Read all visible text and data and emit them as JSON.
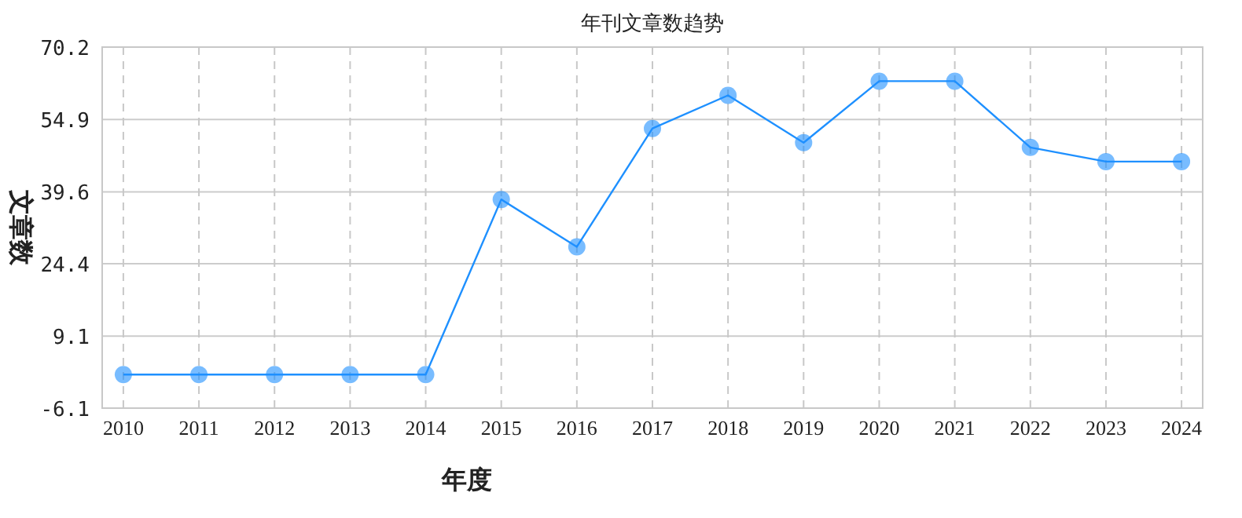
{
  "chart_data": {
    "type": "line",
    "title": "年刊文章数趋势",
    "xlabel": "年度",
    "ylabel": "文章数",
    "categories": [
      "2010",
      "2011",
      "2012",
      "2013",
      "2014",
      "2015",
      "2016",
      "2017",
      "2018",
      "2019",
      "2020",
      "2021",
      "2022",
      "2023",
      "2024"
    ],
    "series": [
      {
        "color": "#1e90ff",
        "values": [
          1,
          1,
          1,
          1,
          1,
          38,
          28,
          53,
          60,
          50,
          63,
          63,
          49,
          46,
          46
        ]
      }
    ],
    "ylim": [
      -6.1,
      70.2
    ],
    "yticks": [
      -6.1,
      9.1,
      24.4,
      39.6,
      54.9,
      70.2
    ],
    "grid": true,
    "marker": "circle",
    "line_style": "solid"
  }
}
